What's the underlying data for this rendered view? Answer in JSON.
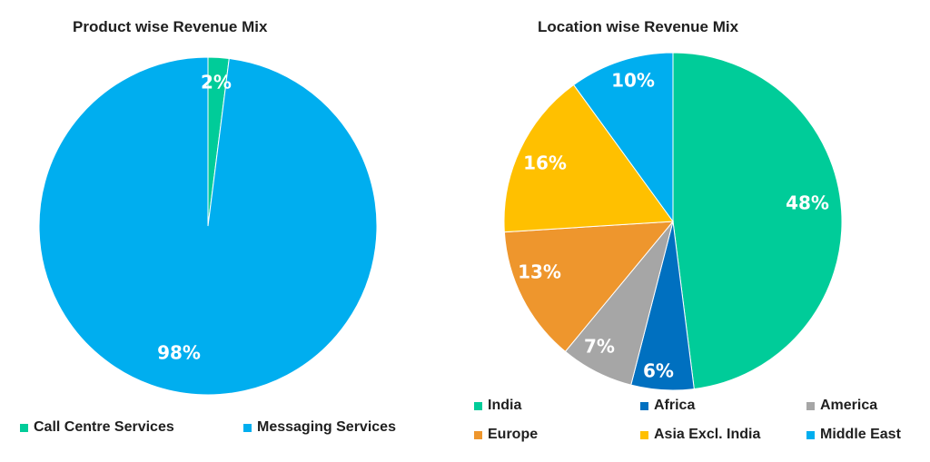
{
  "colors": {
    "call_centre": "#00cc99",
    "messaging": "#00aeef",
    "india": "#00cc99",
    "africa": "#0070c0",
    "america": "#a6a6a6",
    "europe": "#ee962d",
    "asia_excl_india": "#ffc000",
    "middle_east": "#00aeef"
  },
  "chart_data": [
    {
      "type": "pie",
      "title": "Product wise Revenue Mix",
      "slices": [
        {
          "name": "Call Centre Services",
          "value": 2,
          "label": "2%",
          "color": "#00cc99"
        },
        {
          "name": "Messaging Services",
          "value": 98,
          "label": "98%",
          "color": "#00aeef"
        }
      ],
      "legend": [
        "Call Centre Services",
        "Messaging Services"
      ],
      "legend_position": "bottom"
    },
    {
      "type": "pie",
      "title": "Location wise Revenue Mix",
      "slices": [
        {
          "name": "India",
          "value": 48,
          "label": "48%",
          "color": "#00cc99"
        },
        {
          "name": "Africa",
          "value": 6,
          "label": "6%",
          "color": "#0070c0"
        },
        {
          "name": "America",
          "value": 7,
          "label": "7%",
          "color": "#a6a6a6"
        },
        {
          "name": "Europe",
          "value": 13,
          "label": "13%",
          "color": "#ee962d"
        },
        {
          "name": "Asia Excl. India",
          "value": 16,
          "label": "16%",
          "color": "#ffc000"
        },
        {
          "name": "Middle East",
          "value": 10,
          "label": "10%",
          "color": "#00aeef"
        }
      ],
      "legend": [
        "India",
        "Africa",
        "America",
        "Europe",
        "Asia Excl. India",
        "Middle East"
      ],
      "legend_position": "bottom"
    }
  ]
}
